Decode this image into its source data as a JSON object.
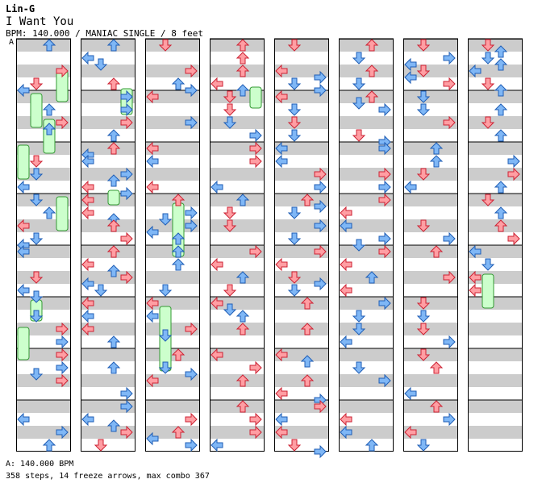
{
  "header": {
    "artist": "Lin-G",
    "title": "I Want You",
    "info": "BPM: 140.000 / MANIAC SINGLE / 8 feet"
  },
  "section_marker": "A",
  "footer": {
    "bpm_line": "A: 140.000 BPM",
    "stats_line": "358 steps, 14 freeze arrows, max combo 367"
  },
  "chart_data": {
    "type": "step-chart",
    "bpm": 140.0,
    "difficulty": "MANIAC",
    "style": "SINGLE",
    "feet": 8,
    "steps": 358,
    "freeze_arrows": 14,
    "max_combo": 367,
    "columns": 8,
    "measures_per_column": 8,
    "colors": {
      "quarter_fill": "#ff9ea3",
      "quarter_stroke": "#cc2233",
      "eighth_fill": "#7fb7f6",
      "eighth_stroke": "#1f5eb5",
      "freeze_fill": "#ccffcc",
      "freeze_stroke": "#339933",
      "stripe": "#cccccc"
    }
  }
}
